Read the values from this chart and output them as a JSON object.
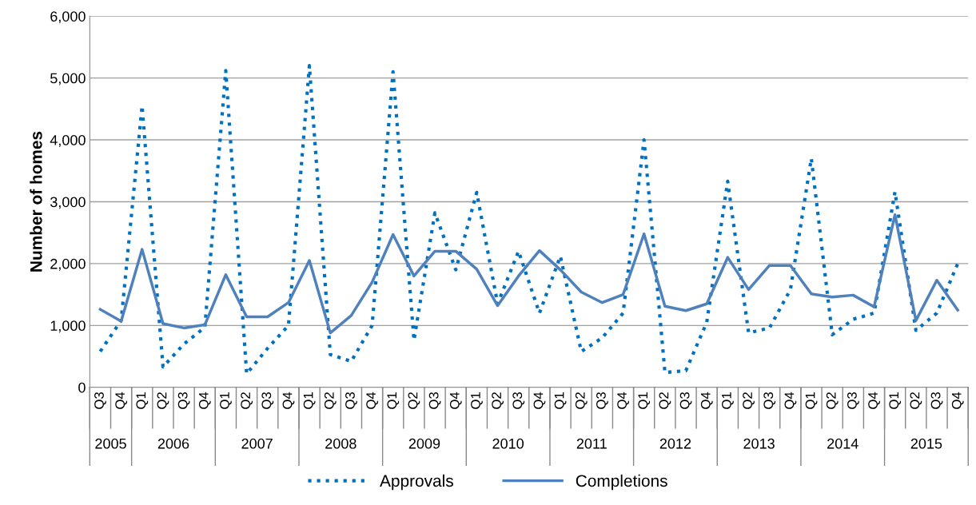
{
  "chart_data": {
    "type": "line",
    "ylabel": "Number of homes",
    "categories": [
      "Q3",
      "Q4",
      "Q1",
      "Q2",
      "Q3",
      "Q4",
      "Q1",
      "Q2",
      "Q3",
      "Q4",
      "Q1",
      "Q2",
      "Q3",
      "Q4",
      "Q1",
      "Q2",
      "Q3",
      "Q4",
      "Q1",
      "Q2",
      "Q3",
      "Q4",
      "Q1",
      "Q2",
      "Q3",
      "Q4",
      "Q1",
      "Q2",
      "Q3",
      "Q4",
      "Q1",
      "Q2",
      "Q3",
      "Q4",
      "Q1",
      "Q2",
      "Q3",
      "Q4",
      "Q1",
      "Q2",
      "Q3",
      "Q4"
    ],
    "annotations": [
      "2005",
      "2006",
      "2007",
      "2008",
      "2009",
      "2010",
      "2011",
      "2012",
      "2013",
      "2014",
      "2015"
    ],
    "series": [
      {
        "name": "Approvals",
        "color": "#0070c0",
        "line_style": "dotted",
        "values": [
          580,
          1080,
          4550,
          330,
          700,
          970,
          5120,
          220,
          630,
          1000,
          5200,
          530,
          420,
          1000,
          5100,
          760,
          2820,
          1900,
          3150,
          1350,
          2200,
          1200,
          2120,
          580,
          800,
          1200,
          4000,
          240,
          270,
          1050,
          3330,
          880,
          960,
          1580,
          3700,
          850,
          1100,
          1200,
          3160,
          920,
          1200,
          2000
        ]
      },
      {
        "name": "Completions",
        "color": "#4f81bd",
        "line_style": "solid",
        "values": [
          1260,
          1070,
          2230,
          1030,
          960,
          1010,
          1820,
          1140,
          1140,
          1370,
          2050,
          880,
          1160,
          1700,
          2470,
          1800,
          2200,
          2200,
          1910,
          1320,
          1800,
          2210,
          1900,
          1540,
          1370,
          1500,
          2480,
          1310,
          1240,
          1350,
          2100,
          1580,
          1970,
          1970,
          1510,
          1460,
          1490,
          1300,
          2790,
          1080,
          1730,
          1250
        ]
      }
    ],
    "ylim": [
      0,
      6000
    ],
    "yticks": [
      {
        "value": 0,
        "label": "0"
      },
      {
        "value": 1000,
        "label": "1,000"
      },
      {
        "value": 2000,
        "label": "2,000"
      },
      {
        "value": 3000,
        "label": "3,000"
      },
      {
        "value": 4000,
        "label": "4,000"
      },
      {
        "value": 5000,
        "label": "5,000"
      },
      {
        "value": 6000,
        "label": "6,000"
      }
    ],
    "grid": "y",
    "legend": "bottom",
    "marker": "none"
  }
}
